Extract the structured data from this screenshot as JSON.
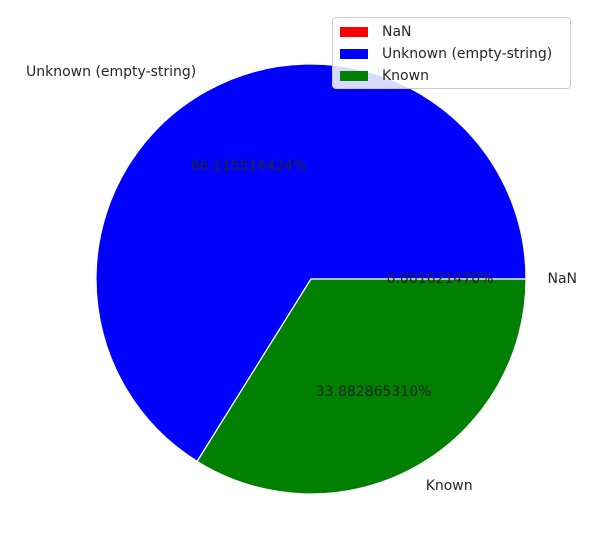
{
  "chart_data": {
    "type": "pie",
    "title": "",
    "categories": [
      "NaN",
      "Unknown (empty-string)",
      "Known"
    ],
    "values": [
      0.00162147,
      66.115516424,
      33.88286531
    ],
    "percent_labels": [
      "0.001621470%",
      "66.115516424%",
      "33.882865310%"
    ],
    "colors": [
      "#ff0000",
      "#0000ff",
      "#008000"
    ],
    "legend": {
      "placement": "top-right",
      "entries": [
        "NaN",
        "Unknown (empty-string)",
        "Known"
      ]
    },
    "start_angle_deg": 0,
    "direction": "counterclockwise",
    "wedge_edge_color": "#ffffff"
  }
}
